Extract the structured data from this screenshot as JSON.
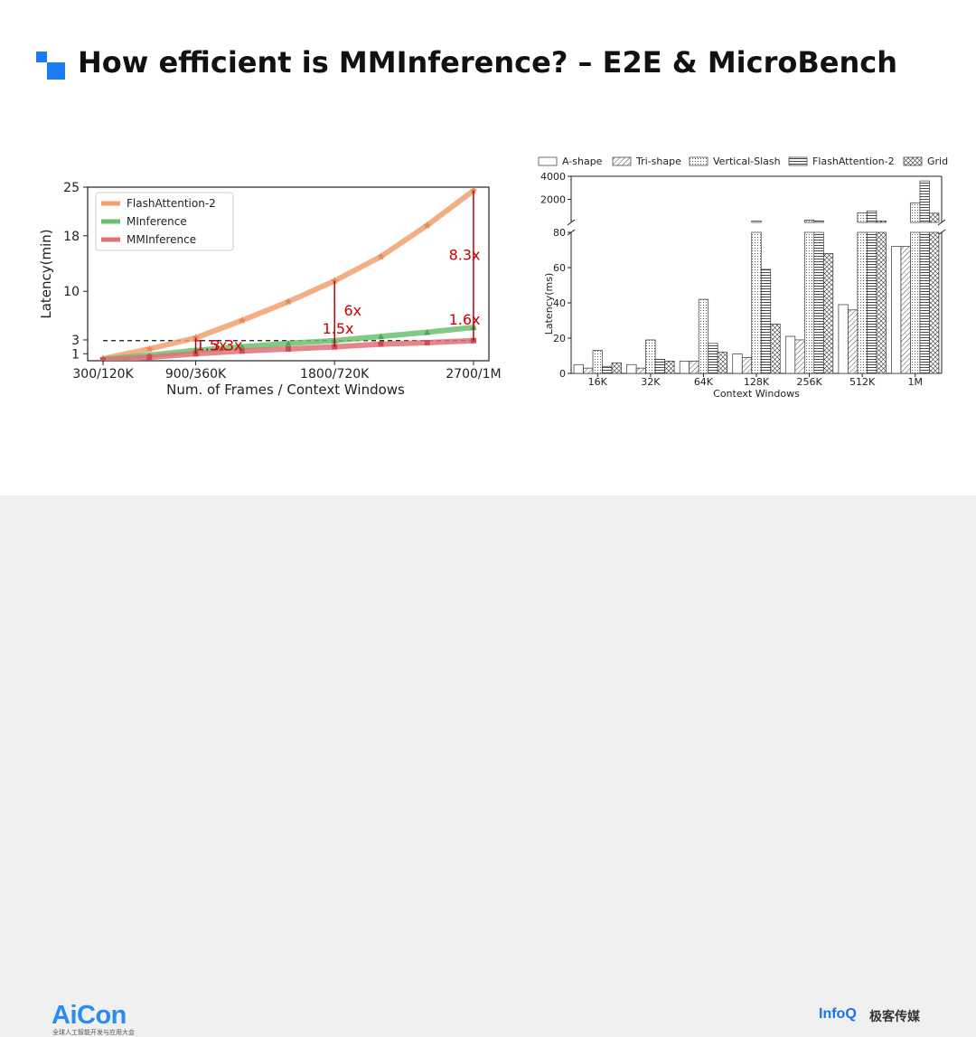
{
  "slide": {
    "title": "How efficient is MMInference? – E2E & MicroBench",
    "accent": "#1a7bf2"
  },
  "footer": {
    "logo": "AiCon",
    "logo_sub": "全球人工智能开发与应用大会",
    "infoq": "InfoQ",
    "infoq_cn": "极客传媒"
  },
  "chart_data": [
    {
      "type": "line",
      "xlabel": "Num. of Frames / Context Windows",
      "ylabel": "Latency(min)",
      "x_ticks": [
        "300/120K",
        "900/360K",
        "1800/720K",
        "2700/1M"
      ],
      "x_tick_positions": [
        300,
        900,
        1800,
        2700
      ],
      "y_ticks": [
        1,
        3,
        10,
        18,
        25
      ],
      "ylim": [
        0,
        25
      ],
      "xlim": [
        200,
        2800
      ],
      "legend_position": "top-left",
      "x": [
        300,
        600,
        900,
        1200,
        1500,
        1800,
        2100,
        2400,
        2700
      ],
      "series": [
        {
          "name": "FlashAttention-2",
          "color": "#f0a070",
          "marker": "star",
          "values": [
            0.3,
            1.7,
            3.3,
            5.8,
            8.5,
            11.5,
            15.0,
            19.5,
            24.5
          ]
        },
        {
          "name": "MInference",
          "color": "#6cc070",
          "marker": "triangle",
          "values": [
            0.2,
            0.8,
            1.5,
            2.0,
            2.5,
            2.9,
            3.5,
            4.1,
            4.8
          ]
        },
        {
          "name": "MMInference",
          "color": "#e07078",
          "marker": "square",
          "values": [
            0.1,
            0.5,
            1.0,
            1.4,
            1.7,
            2.0,
            2.4,
            2.6,
            2.9
          ]
        }
      ],
      "dashed_line_y": 2.9,
      "annotations": [
        {
          "text": "1.5x",
          "x": 900,
          "y": 1.5,
          "color": "#cc0000"
        },
        {
          "text": "3.3x",
          "x": 1000,
          "y": 1.5,
          "color": "#cc0000"
        },
        {
          "text": "1.5x",
          "x": 1720,
          "y": 3.9,
          "color": "#cc0000"
        },
        {
          "text": "6x",
          "x": 1860,
          "y": 6.5,
          "color": "#cc0000"
        },
        {
          "text": "1.6x",
          "x": 2540,
          "y": 5.2,
          "color": "#cc0000"
        },
        {
          "text": "8.3x",
          "x": 2540,
          "y": 14.5,
          "color": "#cc0000"
        }
      ]
    },
    {
      "type": "bar",
      "xlabel": "Context Windows",
      "ylabel": "Latency(ms)",
      "categories": [
        "16K",
        "32K",
        "64K",
        "128K",
        "256K",
        "512K",
        "1M"
      ],
      "y_ticks_lower": [
        0,
        20,
        40,
        60,
        80
      ],
      "y_ticks_upper": [
        2000,
        4000
      ],
      "ylim_lower": [
        0,
        80
      ],
      "ylim_upper": [
        0,
        4000
      ],
      "broken_axis": true,
      "legend_position": "top",
      "series": [
        {
          "name": "A-shape",
          "pattern": "none",
          "values": [
            5,
            5,
            7,
            11,
            21,
            39,
            72
          ]
        },
        {
          "name": "Tri-shape",
          "pattern": "hatch",
          "values": [
            3,
            3,
            7,
            9,
            19,
            36,
            72
          ]
        },
        {
          "name": "Vertical-Slash",
          "pattern": "dots",
          "values": [
            13,
            19,
            42,
            120,
            200,
            830,
            1700
          ]
        },
        {
          "name": "FlashAttention-2",
          "pattern": "lines",
          "values": [
            4,
            8,
            17,
            59,
            130,
            1000,
            3600
          ]
        },
        {
          "name": "Grid",
          "pattern": "cross",
          "values": [
            6,
            7,
            12,
            28,
            68,
            130,
            800
          ]
        }
      ]
    }
  ]
}
